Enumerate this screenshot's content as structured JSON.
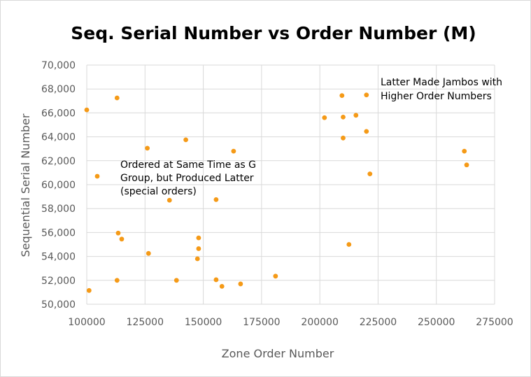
{
  "chart_data": {
    "type": "scatter",
    "title": "Seq. Serial Number vs Order Number (M)",
    "xlabel": "Zone Order Number",
    "ylabel": "Sequential Serial Number",
    "xlim": [
      100000,
      275000
    ],
    "ylim": [
      50000,
      70000
    ],
    "x_ticks": [
      100000,
      125000,
      150000,
      175000,
      200000,
      225000,
      250000,
      275000
    ],
    "x_tick_labels": [
      "100000",
      "125000",
      "150000",
      "175000",
      "200000",
      "225000",
      "250000",
      "275000"
    ],
    "y_ticks": [
      50000,
      52000,
      54000,
      56000,
      58000,
      60000,
      62000,
      64000,
      66000,
      68000,
      70000
    ],
    "y_tick_labels": [
      "50,000",
      "52,000",
      "54,000",
      "56,000",
      "58,000",
      "60,000",
      "62,000",
      "64,000",
      "66,000",
      "68,000",
      "70,000"
    ],
    "grid": true,
    "legend": "none",
    "marker_color": "#F59A17",
    "points": [
      {
        "x": 100000,
        "y": 66250
      },
      {
        "x": 101000,
        "y": 51150
      },
      {
        "x": 104500,
        "y": 60700
      },
      {
        "x": 113000,
        "y": 67250
      },
      {
        "x": 113500,
        "y": 55950
      },
      {
        "x": 115000,
        "y": 55450
      },
      {
        "x": 113000,
        "y": 52000
      },
      {
        "x": 126000,
        "y": 63050
      },
      {
        "x": 126500,
        "y": 54250
      },
      {
        "x": 135500,
        "y": 58700
      },
      {
        "x": 138500,
        "y": 52000
      },
      {
        "x": 142500,
        "y": 63750
      },
      {
        "x": 148000,
        "y": 55550
      },
      {
        "x": 148000,
        "y": 54650
      },
      {
        "x": 147500,
        "y": 53800
      },
      {
        "x": 155500,
        "y": 58750
      },
      {
        "x": 155500,
        "y": 52050
      },
      {
        "x": 158000,
        "y": 51500
      },
      {
        "x": 163000,
        "y": 62800
      },
      {
        "x": 166000,
        "y": 51700
      },
      {
        "x": 181000,
        "y": 52350
      },
      {
        "x": 202000,
        "y": 65600
      },
      {
        "x": 209500,
        "y": 67450
      },
      {
        "x": 210000,
        "y": 65650
      },
      {
        "x": 210000,
        "y": 63900
      },
      {
        "x": 212500,
        "y": 55000
      },
      {
        "x": 215500,
        "y": 65800
      },
      {
        "x": 220000,
        "y": 67500
      },
      {
        "x": 220000,
        "y": 64450
      },
      {
        "x": 221500,
        "y": 60900
      },
      {
        "x": 262000,
        "y": 62800
      },
      {
        "x": 263000,
        "y": 61650
      }
    ],
    "annotations": [
      {
        "lines": [
          "Latter Made Jambos with",
          "Higher Order Numbers"
        ]
      },
      {
        "lines": [
          "Ordered at Same Time as G",
          "Group, but Produced Latter",
          "(special orders)"
        ]
      }
    ]
  }
}
